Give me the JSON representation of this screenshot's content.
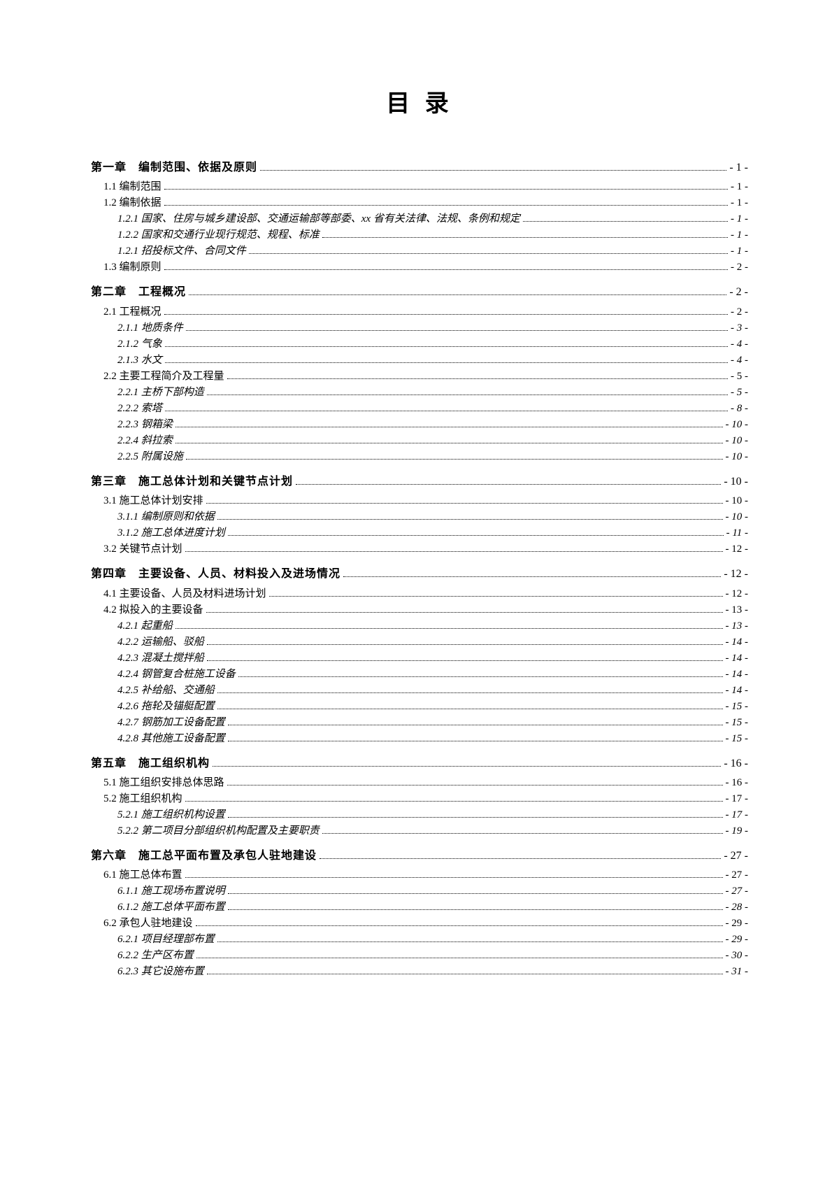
{
  "title": "目 录",
  "toc": [
    {
      "level": "c",
      "label": "第一章　编制范围、依据及原则",
      "page": "- 1 -"
    },
    {
      "level": "2",
      "label": "1.1 编制范围",
      "page": "- 1 -"
    },
    {
      "level": "2",
      "label": "1.2 编制依据",
      "page": "- 1 -"
    },
    {
      "level": "3",
      "label": "1.2.1 国家、住房与城乡建设部、交通运输部等部委、xx 省有关法律、法规、条例和规定",
      "page": "- 1 -"
    },
    {
      "level": "3",
      "label": "1.2.2 国家和交通行业现行规范、规程、标准",
      "page": "- 1 -"
    },
    {
      "level": "3",
      "label": "1.2.1 招投标文件、合同文件",
      "page": "- 1 -"
    },
    {
      "level": "2",
      "label": "1.3 编制原则",
      "page": "- 2 -"
    },
    {
      "level": "c",
      "label": "第二章　工程概况",
      "page": "- 2 -"
    },
    {
      "level": "2",
      "label": "2.1 工程概况",
      "page": "- 2 -"
    },
    {
      "level": "3",
      "label": "2.1.1 地质条件",
      "page": "- 3 -"
    },
    {
      "level": "3",
      "label": "2.1.2 气象",
      "page": "- 4 -"
    },
    {
      "level": "3",
      "label": "2.1.3 水文",
      "page": "- 4 -"
    },
    {
      "level": "2",
      "label": "2.2 主要工程简介及工程量",
      "page": "- 5 -"
    },
    {
      "level": "3",
      "label": "2.2.1 主桥下部构造",
      "page": "- 5 -"
    },
    {
      "level": "3",
      "label": "2.2.2 索塔",
      "page": "- 8 -"
    },
    {
      "level": "3",
      "label": "2.2.3 钢箱梁",
      "page": "- 10 -"
    },
    {
      "level": "3",
      "label": "2.2.4 斜拉索",
      "page": "- 10 -"
    },
    {
      "level": "3",
      "label": "2.2.5 附属设施",
      "page": "- 10 -"
    },
    {
      "level": "c",
      "label": "第三章　施工总体计划和关键节点计划",
      "page": "- 10 -"
    },
    {
      "level": "2",
      "label": "3.1 施工总体计划安排",
      "page": "- 10 -"
    },
    {
      "level": "3",
      "label": "3.1.1 编制原则和依据",
      "page": "- 10 -"
    },
    {
      "level": "3",
      "label": "3.1.2 施工总体进度计划",
      "page": "- 11 -"
    },
    {
      "level": "2",
      "label": "3.2 关键节点计划",
      "page": "- 12 -"
    },
    {
      "level": "c",
      "label": "第四章　主要设备、人员、材料投入及进场情况",
      "page": "- 12 -"
    },
    {
      "level": "2",
      "label": "4.1 主要设备、人员及材料进场计划",
      "page": "- 12 -"
    },
    {
      "level": "2",
      "label": "4.2 拟投入的主要设备",
      "page": "- 13 -"
    },
    {
      "level": "3",
      "label": "4.2.1 起重船",
      "page": "- 13 -"
    },
    {
      "level": "3",
      "label": "4.2.2 运输船、驳船",
      "page": "- 14 -"
    },
    {
      "level": "3",
      "label": "4.2.3 混凝土搅拌船",
      "page": "- 14 -"
    },
    {
      "level": "3",
      "label": "4.2.4 钢管复合桩施工设备",
      "page": "- 14 -"
    },
    {
      "level": "3",
      "label": "4.2.5 补给船、交通船",
      "page": "- 14 -"
    },
    {
      "level": "3",
      "label": "4.2.6 拖轮及锚艇配置",
      "page": "- 15 -"
    },
    {
      "level": "3",
      "label": "4.2.7 钢筋加工设备配置",
      "page": "- 15 -"
    },
    {
      "level": "3",
      "label": "4.2.8 其他施工设备配置",
      "page": "- 15 -"
    },
    {
      "level": "c",
      "label": "第五章　施工组织机构",
      "page": "- 16 -"
    },
    {
      "level": "2",
      "label": "5.1 施工组织安排总体思路",
      "page": "- 16 -"
    },
    {
      "level": "2",
      "label": "5.2 施工组织机构",
      "page": "- 17 -"
    },
    {
      "level": "3",
      "label": "5.2.1 施工组织机构设置",
      "page": "- 17 -"
    },
    {
      "level": "3",
      "label": "5.2.2 第二项目分部组织机构配置及主要职责",
      "page": "- 19 -"
    },
    {
      "level": "c",
      "label": "第六章　施工总平面布置及承包人驻地建设",
      "page": "- 27 -"
    },
    {
      "level": "2",
      "label": "6.1 施工总体布置",
      "page": "- 27 -"
    },
    {
      "level": "3",
      "label": "6.1.1 施工现场布置说明",
      "page": "- 27 -"
    },
    {
      "level": "3",
      "label": "6.1.2 施工总体平面布置",
      "page": "- 28 -"
    },
    {
      "level": "2",
      "label": "6.2 承包人驻地建设",
      "page": "- 29 -"
    },
    {
      "level": "3",
      "label": "6.2.1 项目经理部布置",
      "page": "- 29 -"
    },
    {
      "level": "3",
      "label": "6.2.2 生产区布置",
      "page": "- 30 -"
    },
    {
      "level": "3",
      "label": "6.2.3 其它设施布置",
      "page": "- 31 -"
    }
  ]
}
